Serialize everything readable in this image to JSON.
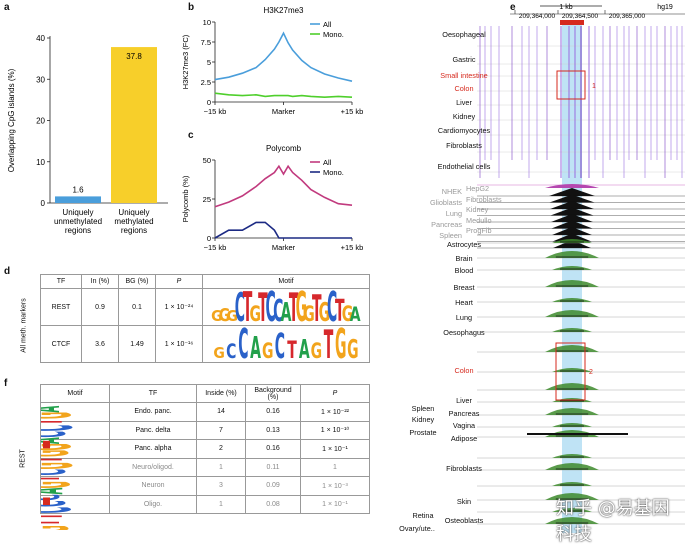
{
  "panel_labels": {
    "a": "a",
    "b": "b",
    "c": "c",
    "d": "d",
    "e": "e",
    "f": "f"
  },
  "colors": {
    "blue": "#4a9edb",
    "yellow": "#f7cf2a",
    "green": "#4fcf2c",
    "magenta": "#c13a7e",
    "navy": "#1c2a84",
    "red": "#d62a1e"
  },
  "chart_data": [
    {
      "type": "bar",
      "panel": "a",
      "ylabel": "Overlapping CpG islands (%)",
      "ylim": [
        0,
        40
      ],
      "yticks": [
        "0",
        "10",
        "20",
        "30",
        "40"
      ],
      "categories": [
        "Uniquely unmethylated regions",
        "Uniquely methylated regions"
      ],
      "category_lines": [
        [
          "Uniquely",
          "unmethylated",
          "regions"
        ],
        [
          "Uniquely",
          "methylated",
          "regions"
        ]
      ],
      "values": [
        1.6,
        37.8
      ],
      "value_labels": [
        "1.6",
        "37.8"
      ]
    },
    {
      "type": "line",
      "panel": "b",
      "title": "H3K27me3",
      "ylabel": "H3K27me3 (FC)",
      "ylim": [
        0,
        10
      ],
      "yticks": [
        "0",
        "2.5",
        "5",
        "7.5",
        "10"
      ],
      "xticks": [
        "−15 kb",
        "Marker",
        "+15 kb"
      ],
      "x": [
        -15,
        -12,
        -9,
        -6,
        -4,
        -2,
        -1,
        0,
        1,
        2,
        4,
        6,
        9,
        12,
        15
      ],
      "series": [
        {
          "name": "All",
          "values": [
            2.8,
            3.1,
            3.6,
            4.3,
            5.3,
            6.6,
            7.5,
            8.6,
            7.4,
            6.5,
            5.2,
            4.3,
            3.5,
            3.0,
            2.6
          ]
        },
        {
          "name": "Mono.",
          "values": [
            1.1,
            0.9,
            0.8,
            0.9,
            0.7,
            0.8,
            0.8,
            0.8,
            0.8,
            0.7,
            0.8,
            0.7,
            0.6,
            0.7,
            0.6
          ]
        }
      ],
      "legend": "top-right"
    },
    {
      "type": "line",
      "panel": "c",
      "title": "Polycomb",
      "ylabel": "Polycomb (%)",
      "ylim": [
        0,
        50
      ],
      "yticks": [
        "0",
        "25",
        "50"
      ],
      "xticks": [
        "−15 kb",
        "Marker",
        "+15 kb"
      ],
      "x": [
        -15,
        -12,
        -9,
        -6,
        -4,
        -2,
        -1,
        0,
        1,
        2,
        4,
        6,
        9,
        12,
        15
      ],
      "series": [
        {
          "name": "All",
          "values": [
            20,
            23,
            27,
            33,
            38,
            42,
            46,
            41,
            46,
            42,
            37,
            31,
            26,
            22,
            21
          ]
        },
        {
          "name": "Mono.",
          "values": [
            0,
            5,
            5,
            10,
            10,
            5,
            0,
            0,
            0,
            0,
            0,
            0,
            0,
            0,
            0
          ]
        }
      ],
      "legend": "top-right"
    }
  ],
  "panel_d": {
    "row_group": "All meth. markers",
    "headers": [
      "TF",
      "In (%)",
      "BG (%)",
      "P",
      "Motif"
    ],
    "rows": [
      {
        "tf": "REST",
        "in": "0.9",
        "bg": "0.1",
        "p": "1 × 10⁻²⁴",
        "logo": "GGGCTGTCCATGGTGCTGA"
      },
      {
        "tf": "CTCF",
        "in": "3.6",
        "bg": "1.49",
        "p": "1 × 10⁻¹⁶",
        "logo": "GCCAGCTAGTGG"
      }
    ]
  },
  "panel_e": {
    "scale": "1 kb",
    "genome": "hg19",
    "coords": [
      "209,364,000",
      "209,364,500",
      "209,365,000"
    ],
    "box_labels": [
      "1",
      "2"
    ],
    "tissues_top": [
      {
        "name": "Oesophageal",
        "color": "black"
      },
      {
        "name": "Gastric",
        "color": "black"
      },
      {
        "name": "Small intestine",
        "color": "red"
      },
      {
        "name": "Colon",
        "color": "red"
      },
      {
        "name": "Liver",
        "color": "black"
      },
      {
        "name": "Kidney",
        "color": "black"
      },
      {
        "name": "Cardiomyocytes",
        "color": "black"
      },
      {
        "name": "Fibroblasts",
        "color": "black"
      },
      {
        "name": "Endothelial cells",
        "color": "black"
      }
    ],
    "celllines_left": [
      "NHEK",
      "Glioblasts",
      "Lung",
      "Pancreas",
      "Spleen"
    ],
    "celllines_right": [
      "HepG2",
      "Fibroblasts",
      "Kidney",
      "Medullo",
      "ProgFib"
    ],
    "tissues_bottom": [
      {
        "name": "Astrocytes"
      },
      {
        "name": "Brain"
      },
      {
        "name": "Blood"
      },
      {
        "name": "Breast"
      },
      {
        "name": "Heart"
      },
      {
        "name": "Lung"
      },
      {
        "name": "Oesophagus"
      },
      {
        "name": "Colon"
      },
      {
        "name": "Liver"
      },
      {
        "name": "Spleen"
      },
      {
        "name": "Pancreas"
      },
      {
        "name": "Kidney"
      },
      {
        "name": "Vagina"
      },
      {
        "name": "Prostate"
      },
      {
        "name": "Adipose"
      },
      {
        "name": "Fibroblasts"
      },
      {
        "name": "Skin"
      },
      {
        "name": "Retina"
      },
      {
        "name": "Osteoblasts"
      },
      {
        "name": "Ovary/ute.."
      }
    ]
  },
  "panel_f": {
    "row_group": "REST",
    "headers": [
      "Motif",
      "TF",
      "Inside (%)",
      "Background (%)",
      "P"
    ],
    "rows": [
      {
        "tf": "Endo. panc.",
        "inside": "14",
        "bg": "0.16",
        "p": "1 × 10⁻²²",
        "muted": false
      },
      {
        "tf": "Panc. delta",
        "inside": "7",
        "bg": "0.13",
        "p": "1 × 10⁻¹⁰",
        "muted": false
      },
      {
        "tf": "Panc. alpha",
        "inside": "2",
        "bg": "0.16",
        "p": "1 × 10⁻¹",
        "muted": false
      },
      {
        "tf": "Neuro/oligod.",
        "inside": "1",
        "bg": "0.11",
        "p": "1",
        "muted": true
      },
      {
        "tf": "Neuron",
        "inside": "3",
        "bg": "0.09",
        "p": "1 × 10⁻³",
        "muted": true
      },
      {
        "tf": "Oligo.",
        "inside": "1",
        "bg": "0.08",
        "p": "1 × 10⁻¹",
        "muted": true
      }
    ]
  },
  "watermark": "知乎 @易基因科技"
}
